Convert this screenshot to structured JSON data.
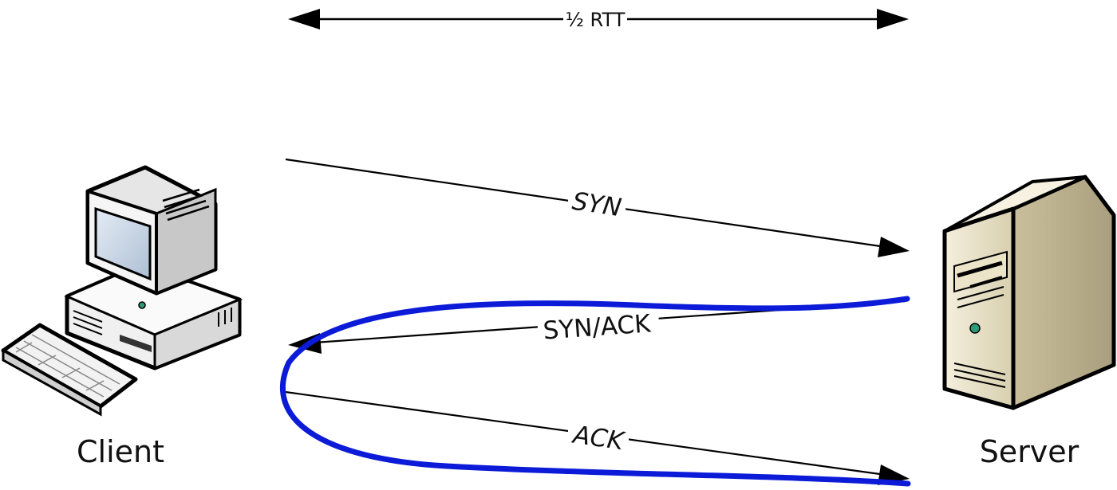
{
  "diagram": {
    "rtt_label": "½ RTT",
    "client": {
      "label": "Client",
      "icon": "desktop-computer-icon"
    },
    "server": {
      "label": "Server",
      "icon": "tower-server-icon"
    },
    "messages": [
      {
        "label": "SYN",
        "from": "Client",
        "to": "Server"
      },
      {
        "label": "SYN/ACK",
        "from": "Server",
        "to": "Client"
      },
      {
        "label": "ACK",
        "from": "Client",
        "to": "Server"
      }
    ],
    "colors": {
      "highlight_curve": "#0b1bd8",
      "arrow": "#000000",
      "computer_body": "#f2f2f2",
      "computer_screen": "#c9d6e6",
      "server_body": "#ede6cf",
      "indicator": "#2f9a7a"
    }
  }
}
